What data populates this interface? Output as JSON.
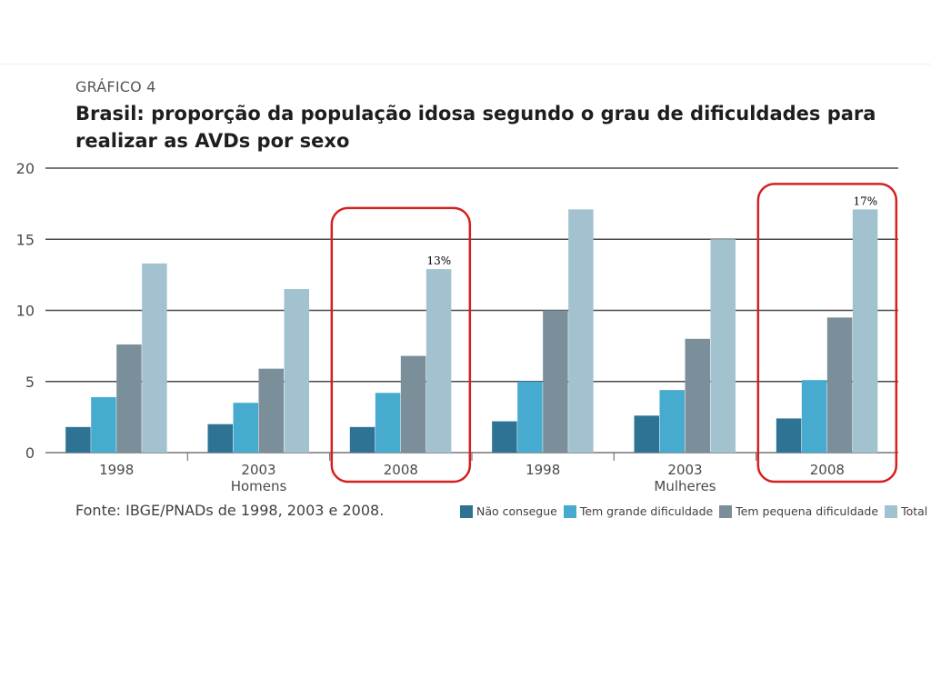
{
  "header": {
    "kicker": "GRÁFICO 4",
    "title": "Brasil: proporção da população idosa  segundo o grau de dificuldades para realizar as AVDs por sexo"
  },
  "source": "Fonte: IBGE/PNADs de 1998, 2003 e 2008.",
  "colors": {
    "nao_consegue": "#2e7394",
    "grande": "#46abcf",
    "pequena": "#7b8f9b",
    "total": "#a3c2cf",
    "highlight": "#d42020",
    "grid": "#4a4a4a"
  },
  "legend": [
    {
      "label": "Não consegue",
      "color": "#2e7394"
    },
    {
      "label": "Tem grande dificuldade",
      "color": "#46abcf"
    },
    {
      "label": "Tem pequena dificuldade",
      "color": "#7b8f9b"
    },
    {
      "label": "Total",
      "color": "#a3c2cf"
    }
  ],
  "chart_data": {
    "type": "bar",
    "title": "Brasil: proporção da população idosa  segundo o grau de dificuldades para realizar as AVDs por sexo",
    "xlabel": "",
    "ylabel": "",
    "ylim": [
      0,
      20
    ],
    "yticks": [
      0,
      5,
      10,
      15,
      20
    ],
    "grid": true,
    "legend_position": "bottom-right",
    "categories": [
      "1998",
      "2003",
      "2008",
      "1998",
      "2003",
      "2008"
    ],
    "groups": [
      {
        "label": "Homens",
        "categories": [
          0,
          1,
          2
        ]
      },
      {
        "label": "Mulheres",
        "categories": [
          3,
          4,
          5
        ]
      }
    ],
    "series": [
      {
        "name": "Não consegue",
        "values": [
          1.8,
          2.0,
          1.8,
          2.2,
          2.6,
          2.4
        ]
      },
      {
        "name": "Tem grande dificuldade",
        "values": [
          3.9,
          3.5,
          4.2,
          5.0,
          4.4,
          5.1
        ]
      },
      {
        "name": "Tem pequena dificuldade",
        "values": [
          7.6,
          5.9,
          6.8,
          10.0,
          8.0,
          9.5
        ]
      },
      {
        "name": "Total",
        "values": [
          13.3,
          11.5,
          12.9,
          17.1,
          15.0,
          17.1
        ]
      }
    ],
    "annotations": [
      {
        "category": 2,
        "series": 3,
        "text": "13%",
        "highlight": true
      },
      {
        "category": 5,
        "series": 3,
        "text": "17%",
        "highlight": true
      }
    ]
  }
}
